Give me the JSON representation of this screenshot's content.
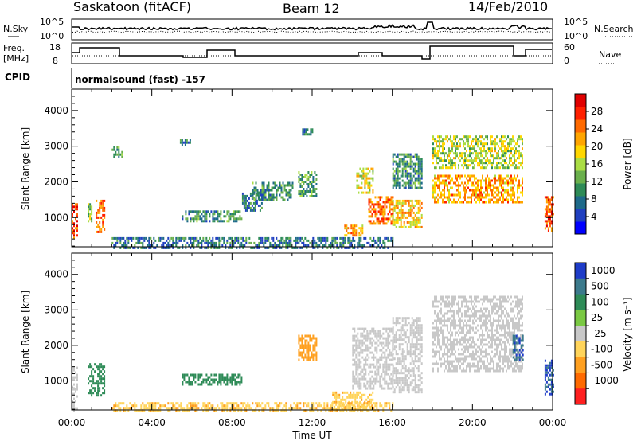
{
  "header": {
    "station": "Saskatoon (fitACF)",
    "beam": "Beam 12",
    "date": "14/Feb/2010"
  },
  "top_panels": {
    "nsky_label": "N.Sky",
    "nsky_ticks": [
      "10^5",
      "10^0"
    ],
    "nsearch_label": "N.Search",
    "nsearch_ticks": [
      "10^5",
      "10^0"
    ],
    "freq_label_1": "Freq.",
    "freq_label_2": "[MHz]",
    "freq_ticks": [
      "18",
      "8"
    ],
    "nave_label": "Nave",
    "nave_ticks": [
      "60",
      "0"
    ],
    "cpid_label": "CPID",
    "cpid_value": "normalsound (fast) -157"
  },
  "chart_data": [
    {
      "type": "heatmap",
      "panel": "power",
      "ylabel": "Slant Range [km]",
      "ylim": [
        180,
        4600
      ],
      "yticks": [
        "1000",
        "2000",
        "3000",
        "4000"
      ],
      "xlim_hours": [
        0,
        24
      ],
      "colorbar": {
        "label": "Power [dB]",
        "range": [
          0,
          32
        ],
        "ticks": [
          "28",
          "24",
          "20",
          "16",
          "12",
          "8",
          "4"
        ],
        "colors": [
          "#0000ff",
          "#2040c0",
          "#1e6a8a",
          "#2e8b57",
          "#6ab04c",
          "#aadd44",
          "#ffd700",
          "#ffa500",
          "#ff6a00",
          "#ff2000",
          "#e00000"
        ]
      },
      "echo_regions": [
        {
          "t": [
            0.0,
            0.3
          ],
          "range": [
            450,
            1400
          ],
          "value": 26
        },
        {
          "t": [
            0.8,
            1.0
          ],
          "range": [
            800,
            1400
          ],
          "value": 14
        },
        {
          "t": [
            1.2,
            1.6
          ],
          "range": [
            600,
            1500
          ],
          "value": 24
        },
        {
          "t": [
            2.0,
            2.5
          ],
          "range": [
            2700,
            3000
          ],
          "value": 10
        },
        {
          "t": [
            5.4,
            5.9
          ],
          "range": [
            3050,
            3200
          ],
          "value": 8
        },
        {
          "t": [
            5.5,
            8.5
          ],
          "range": [
            900,
            1200
          ],
          "value": 10
        },
        {
          "t": [
            8.5,
            9.5
          ],
          "range": [
            1200,
            1700
          ],
          "value": 8
        },
        {
          "t": [
            9.0,
            11.0
          ],
          "range": [
            1500,
            2000
          ],
          "value": 10
        },
        {
          "t": [
            11.3,
            12.2
          ],
          "range": [
            1600,
            2300
          ],
          "value": 12
        },
        {
          "t": [
            11.5,
            12.0
          ],
          "range": [
            3300,
            3500
          ],
          "value": 8
        },
        {
          "t": [
            13.6,
            14.5
          ],
          "range": [
            500,
            800
          ],
          "value": 22
        },
        {
          "t": [
            14.2,
            15.0
          ],
          "range": [
            1700,
            2400
          ],
          "value": 18
        },
        {
          "t": [
            14.8,
            16.0
          ],
          "range": [
            800,
            1600
          ],
          "value": 24
        },
        {
          "t": [
            16.0,
            17.5
          ],
          "range": [
            700,
            1500
          ],
          "value": 20
        },
        {
          "t": [
            16.0,
            17.5
          ],
          "range": [
            1800,
            2800
          ],
          "value": 10
        },
        {
          "t": [
            18.0,
            22.5
          ],
          "range": [
            1400,
            2200
          ],
          "value": 22
        },
        {
          "t": [
            18.0,
            22.5
          ],
          "range": [
            2400,
            3300
          ],
          "value": 16
        },
        {
          "t": [
            23.6,
            24.0
          ],
          "range": [
            600,
            1600
          ],
          "value": 26
        },
        {
          "t": [
            2.0,
            16.0
          ],
          "range": [
            180,
            450
          ],
          "value": 8
        }
      ]
    },
    {
      "type": "heatmap",
      "panel": "velocity",
      "ylabel": "Slant Range [km]",
      "ylim": [
        180,
        4600
      ],
      "yticks": [
        "1000",
        "2000",
        "3000",
        "4000"
      ],
      "xlabel": "Time UT",
      "xticks": [
        "00:00",
        "04:00",
        "08:00",
        "12:00",
        "16:00",
        "20:00",
        "00:00"
      ],
      "xlim_hours": [
        0,
        24
      ],
      "colorbar": {
        "label": "Velocity [m s⁻¹]",
        "ticks": [
          "1000",
          "500",
          "100",
          "25",
          "-25",
          "-100",
          "-500",
          "-1000"
        ],
        "colors": [
          "#1e3cc8",
          "#3c7a8c",
          "#2e8b57",
          "#7ac943",
          "#c8c8c8",
          "#ffd45a",
          "#ffa020",
          "#ff6a00",
          "#ff2020"
        ]
      },
      "echo_regions": [
        {
          "t": [
            0.0,
            0.3
          ],
          "range": [
            180,
            1400
          ],
          "value": 0
        },
        {
          "t": [
            0.8,
            1.6
          ],
          "range": [
            600,
            1500
          ],
          "value": 200
        },
        {
          "t": [
            5.5,
            8.5
          ],
          "range": [
            900,
            1200
          ],
          "value": 200
        },
        {
          "t": [
            11.3,
            12.2
          ],
          "range": [
            1600,
            2300
          ],
          "value": -300
        },
        {
          "t": [
            13.0,
            15.0
          ],
          "range": [
            180,
            700
          ],
          "value": -80
        },
        {
          "t": [
            14.0,
            16.0
          ],
          "range": [
            800,
            2500
          ],
          "value": 0
        },
        {
          "t": [
            16.0,
            17.5
          ],
          "range": [
            700,
            2800
          ],
          "value": 0
        },
        {
          "t": [
            18.0,
            22.5
          ],
          "range": [
            1300,
            3400
          ],
          "value": 0
        },
        {
          "t": [
            22.0,
            22.5
          ],
          "range": [
            1600,
            2300
          ],
          "value": 600
        },
        {
          "t": [
            23.6,
            24.0
          ],
          "range": [
            600,
            1600
          ],
          "value": 700
        },
        {
          "t": [
            2.0,
            16.0
          ],
          "range": [
            180,
            400
          ],
          "value": -80
        }
      ]
    }
  ]
}
